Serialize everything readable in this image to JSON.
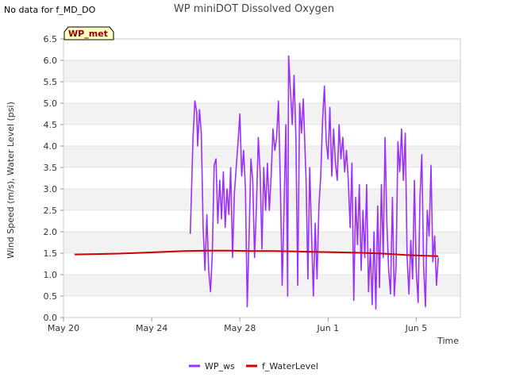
{
  "notice": "No data for f_MD_DO",
  "chart_data": {
    "type": "line",
    "title": "WP miniDOT Dissolved Oxygen",
    "xlabel": "Time",
    "ylabel": "Wind Speed (m/s), Water Level (psi)",
    "badge": "WP_met",
    "ylim": [
      0.0,
      6.5
    ],
    "yticks": [
      "0.0",
      "0.5",
      "1.0",
      "1.5",
      "2.0",
      "2.5",
      "3.0",
      "3.5",
      "4.0",
      "4.5",
      "5.0",
      "5.5",
      "6.0",
      "6.5"
    ],
    "xlim": [
      "2024-05-20",
      "2024-06-07"
    ],
    "xticks": [
      {
        "date": "2024-05-20",
        "label": "May 20"
      },
      {
        "date": "2024-05-24",
        "label": "May 24"
      },
      {
        "date": "2024-05-28",
        "label": "May 28"
      },
      {
        "date": "2024-06-01",
        "label": "Jun 1"
      },
      {
        "date": "2024-06-05",
        "label": "Jun 5"
      }
    ],
    "grid": "horizontal bands",
    "legend_position": "bottom-center",
    "series": [
      {
        "name": "WP_ws",
        "color": "#9b30ff",
        "points": [
          [
            "2024-05-25 18:00",
            1.95
          ],
          [
            "2024-05-25 19:00",
            2.7
          ],
          [
            "2024-05-25 21:00",
            4.2
          ],
          [
            "2024-05-25 23:00",
            5.05
          ],
          [
            "2024-05-26 01:00",
            4.8
          ],
          [
            "2024-05-26 02:00",
            4.0
          ],
          [
            "2024-05-26 04:00",
            4.85
          ],
          [
            "2024-05-26 06:00",
            4.3
          ],
          [
            "2024-05-26 08:00",
            2.1
          ],
          [
            "2024-05-26 10:00",
            1.1
          ],
          [
            "2024-05-26 12:00",
            2.4
          ],
          [
            "2024-05-26 14:00",
            1.1
          ],
          [
            "2024-05-26 16:00",
            0.6
          ],
          [
            "2024-05-26 18:00",
            1.5
          ],
          [
            "2024-05-26 20:00",
            3.55
          ],
          [
            "2024-05-26 22:00",
            3.7
          ],
          [
            "2024-05-27 00:00",
            2.2
          ],
          [
            "2024-05-27 02:00",
            3.2
          ],
          [
            "2024-05-27 04:00",
            2.3
          ],
          [
            "2024-05-27 06:00",
            3.4
          ],
          [
            "2024-05-27 08:00",
            2.1
          ],
          [
            "2024-05-27 10:00",
            3.0
          ],
          [
            "2024-05-27 12:00",
            2.4
          ],
          [
            "2024-05-27 14:00",
            3.5
          ],
          [
            "2024-05-27 16:00",
            1.4
          ],
          [
            "2024-05-27 18:00",
            2.9
          ],
          [
            "2024-05-27 20:00",
            3.5
          ],
          [
            "2024-05-27 22:00",
            4.1
          ],
          [
            "2024-05-28 00:00",
            4.75
          ],
          [
            "2024-05-28 02:00",
            3.3
          ],
          [
            "2024-05-28 04:00",
            3.9
          ],
          [
            "2024-05-28 06:00",
            3.0
          ],
          [
            "2024-05-28 08:00",
            0.25
          ],
          [
            "2024-05-28 10:00",
            1.9
          ],
          [
            "2024-05-28 12:00",
            3.7
          ],
          [
            "2024-05-28 14:00",
            3.2
          ],
          [
            "2024-05-28 16:00",
            1.4
          ],
          [
            "2024-05-28 18:00",
            2.6
          ],
          [
            "2024-05-28 20:00",
            4.2
          ],
          [
            "2024-05-28 22:00",
            3.4
          ],
          [
            "2024-05-29 00:00",
            1.6
          ],
          [
            "2024-05-29 02:00",
            3.5
          ],
          [
            "2024-05-29 04:00",
            2.5
          ],
          [
            "2024-05-29 06:00",
            3.6
          ],
          [
            "2024-05-29 08:00",
            2.5
          ],
          [
            "2024-05-29 10:00",
            3.3
          ],
          [
            "2024-05-29 12:00",
            4.4
          ],
          [
            "2024-05-29 14:00",
            3.9
          ],
          [
            "2024-05-29 16:00",
            4.2
          ],
          [
            "2024-05-29 18:00",
            5.05
          ],
          [
            "2024-05-29 20:00",
            3.2
          ],
          [
            "2024-05-29 22:00",
            0.75
          ],
          [
            "2024-05-30 00:00",
            2.5
          ],
          [
            "2024-05-30 02:00",
            4.5
          ],
          [
            "2024-05-30 04:00",
            0.5
          ],
          [
            "2024-05-30 05:00",
            6.1
          ],
          [
            "2024-05-30 07:00",
            5.3
          ],
          [
            "2024-05-30 09:00",
            4.5
          ],
          [
            "2024-05-30 11:00",
            5.65
          ],
          [
            "2024-05-30 13:00",
            4.2
          ],
          [
            "2024-05-30 15:00",
            0.75
          ],
          [
            "2024-05-30 17:00",
            5.0
          ],
          [
            "2024-05-30 19:00",
            4.3
          ],
          [
            "2024-05-30 21:00",
            5.1
          ],
          [
            "2024-05-31 00:00",
            3.2
          ],
          [
            "2024-05-31 02:00",
            0.9
          ],
          [
            "2024-05-31 04:00",
            3.5
          ],
          [
            "2024-05-31 06:00",
            1.95
          ],
          [
            "2024-05-31 08:00",
            0.5
          ],
          [
            "2024-05-31 10:00",
            2.2
          ],
          [
            "2024-05-31 12:00",
            0.9
          ],
          [
            "2024-05-31 14:00",
            2.6
          ],
          [
            "2024-05-31 16:00",
            3.3
          ],
          [
            "2024-05-31 18:00",
            4.6
          ],
          [
            "2024-05-31 20:00",
            5.4
          ],
          [
            "2024-05-31 22:00",
            4.1
          ],
          [
            "2024-06-01 00:00",
            3.7
          ],
          [
            "2024-06-01 02:00",
            4.9
          ],
          [
            "2024-06-01 04:00",
            3.3
          ],
          [
            "2024-06-01 06:00",
            4.4
          ],
          [
            "2024-06-01 08:00",
            3.6
          ],
          [
            "2024-06-01 10:00",
            3.2
          ],
          [
            "2024-06-01 12:00",
            4.5
          ],
          [
            "2024-06-01 14:00",
            3.7
          ],
          [
            "2024-06-01 16:00",
            4.2
          ],
          [
            "2024-06-01 18:00",
            3.4
          ],
          [
            "2024-06-01 20:00",
            3.9
          ],
          [
            "2024-06-01 22:00",
            3.2
          ],
          [
            "2024-06-02 00:00",
            2.1
          ],
          [
            "2024-06-02 02:00",
            3.6
          ],
          [
            "2024-06-02 04:00",
            0.4
          ],
          [
            "2024-06-02 06:00",
            2.8
          ],
          [
            "2024-06-02 08:00",
            1.7
          ],
          [
            "2024-06-02 10:00",
            3.1
          ],
          [
            "2024-06-02 12:00",
            1.1
          ],
          [
            "2024-06-02 14:00",
            2.5
          ],
          [
            "2024-06-02 16:00",
            1.4
          ],
          [
            "2024-06-02 18:00",
            3.1
          ],
          [
            "2024-06-02 20:00",
            0.6
          ],
          [
            "2024-06-02 22:00",
            1.6
          ],
          [
            "2024-06-03 00:00",
            0.3
          ],
          [
            "2024-06-03 02:00",
            2.0
          ],
          [
            "2024-06-03 04:00",
            0.2
          ],
          [
            "2024-06-03 06:00",
            2.6
          ],
          [
            "2024-06-03 08:00",
            0.7
          ],
          [
            "2024-06-03 10:00",
            3.1
          ],
          [
            "2024-06-03 12:00",
            1.4
          ],
          [
            "2024-06-03 14:00",
            4.2
          ],
          [
            "2024-06-03 16:00",
            2.2
          ],
          [
            "2024-06-03 18:00",
            1.1
          ],
          [
            "2024-06-03 20:00",
            0.55
          ],
          [
            "2024-06-03 22:00",
            2.8
          ],
          [
            "2024-06-04 00:00",
            0.5
          ],
          [
            "2024-06-04 02:00",
            1.2
          ],
          [
            "2024-06-04 04:00",
            4.1
          ],
          [
            "2024-06-04 06:00",
            3.4
          ],
          [
            "2024-06-04 08:00",
            4.4
          ],
          [
            "2024-06-04 10:00",
            3.2
          ],
          [
            "2024-06-04 12:00",
            4.3
          ],
          [
            "2024-06-04 14:00",
            1.4
          ],
          [
            "2024-06-04 16:00",
            0.55
          ],
          [
            "2024-06-04 18:00",
            1.8
          ],
          [
            "2024-06-04 20:00",
            0.9
          ],
          [
            "2024-06-04 22:00",
            3.2
          ],
          [
            "2024-06-05 00:00",
            1.1
          ],
          [
            "2024-06-05 02:00",
            0.35
          ],
          [
            "2024-06-05 04:00",
            2.8
          ],
          [
            "2024-06-05 06:00",
            3.8
          ],
          [
            "2024-06-05 08:00",
            1.2
          ],
          [
            "2024-06-05 10:00",
            0.25
          ],
          [
            "2024-06-05 12:00",
            2.5
          ],
          [
            "2024-06-05 14:00",
            1.9
          ],
          [
            "2024-06-05 16:00",
            3.55
          ],
          [
            "2024-06-05 18:00",
            1.3
          ],
          [
            "2024-06-05 20:00",
            1.9
          ],
          [
            "2024-06-05 22:00",
            0.75
          ],
          [
            "2024-06-06 00:00",
            1.4
          ]
        ]
      },
      {
        "name": "f_WaterLevel",
        "color": "#cc0000",
        "points": [
          [
            "2024-05-20 12:00",
            1.47
          ],
          [
            "2024-05-21 12:00",
            1.48
          ],
          [
            "2024-05-22 12:00",
            1.49
          ],
          [
            "2024-05-23 12:00",
            1.51
          ],
          [
            "2024-05-24 12:00",
            1.53
          ],
          [
            "2024-05-25 12:00",
            1.55
          ],
          [
            "2024-05-26 12:00",
            1.56
          ],
          [
            "2024-05-27 12:00",
            1.56
          ],
          [
            "2024-05-28 12:00",
            1.55
          ],
          [
            "2024-05-29 12:00",
            1.55
          ],
          [
            "2024-05-30 12:00",
            1.54
          ],
          [
            "2024-05-31 12:00",
            1.53
          ],
          [
            "2024-06-01 12:00",
            1.52
          ],
          [
            "2024-06-02 12:00",
            1.51
          ],
          [
            "2024-06-03 12:00",
            1.49
          ],
          [
            "2024-06-04 12:00",
            1.46
          ],
          [
            "2024-06-05 12:00",
            1.44
          ],
          [
            "2024-06-06 00:00",
            1.43
          ]
        ]
      }
    ]
  }
}
